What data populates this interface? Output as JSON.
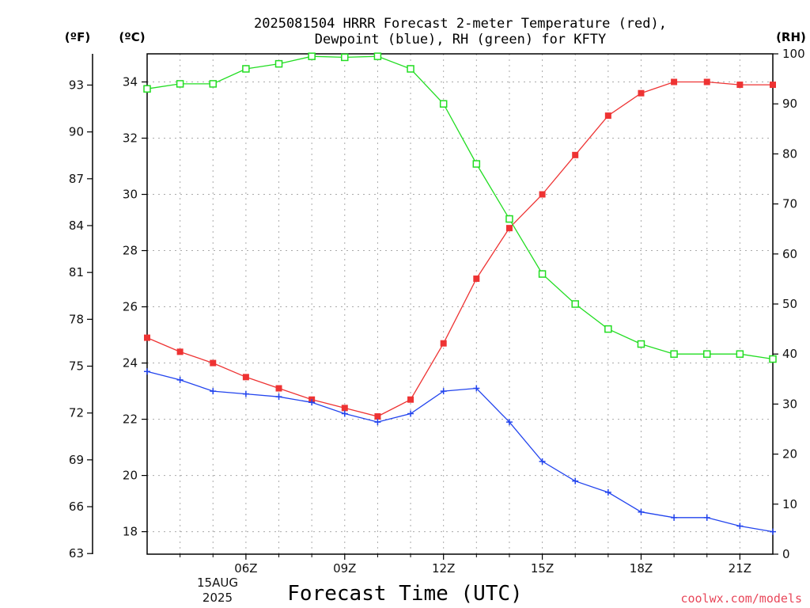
{
  "chart_data": {
    "type": "line",
    "title_lines": [
      "2025081504 HRRR Forecast 2-meter Temperature (red),",
      "Dewpoint (blue), RH (green) for KFTY"
    ],
    "xlabel": "Forecast Time (UTC)",
    "units": {
      "fahrenheit": "(ºF)",
      "celsius": "(ºC)",
      "rh": "(RH)"
    },
    "x_hours": [
      3,
      4,
      5,
      6,
      7,
      8,
      9,
      10,
      11,
      12,
      13,
      14,
      15,
      16,
      17,
      18,
      19,
      20,
      21,
      22
    ],
    "x_ticks": [
      {
        "hour": 6,
        "label": "06Z"
      },
      {
        "hour": 9,
        "label": "09Z"
      },
      {
        "hour": 12,
        "label": "12Z"
      },
      {
        "hour": 15,
        "label": "15Z"
      },
      {
        "hour": 18,
        "label": "18Z"
      },
      {
        "hour": 21,
        "label": "21Z"
      }
    ],
    "date_label": [
      "15AUG",
      "2025"
    ],
    "xlim": [
      3,
      22
    ],
    "ylim_celsius": [
      17.2,
      35.0
    ],
    "ylim_rh": [
      0,
      100
    ],
    "celsius_ticks": [
      "18",
      "20",
      "22",
      "24",
      "26",
      "28",
      "30",
      "32",
      "34"
    ],
    "fahrenheit_ticks": [
      "63",
      "66",
      "69",
      "72",
      "75",
      "78",
      "81",
      "84",
      "87",
      "90",
      "93"
    ],
    "rh_ticks": [
      "0",
      "10",
      "20",
      "30",
      "40",
      "50",
      "60",
      "70",
      "80",
      "90",
      "100"
    ],
    "grid": true,
    "series": [
      {
        "name": "Temperature",
        "axis": "celsius",
        "color": "#ee3333",
        "marker": "filled-square",
        "values": [
          24.9,
          24.4,
          24.0,
          23.5,
          23.1,
          22.7,
          22.4,
          22.1,
          22.7,
          24.7,
          27.0,
          28.8,
          30.0,
          31.4,
          32.8,
          33.6,
          34.0,
          34.0,
          33.9,
          33.9
        ]
      },
      {
        "name": "Dewpoint",
        "axis": "celsius",
        "color": "#2244ee",
        "marker": "plus",
        "values": [
          23.7,
          23.4,
          23.0,
          22.9,
          22.8,
          22.6,
          22.2,
          21.9,
          22.2,
          23.0,
          23.1,
          21.9,
          20.5,
          19.8,
          19.4,
          18.7,
          18.5,
          18.5,
          18.2,
          18.0
        ]
      },
      {
        "name": "RH",
        "axis": "rh",
        "color": "#22dd22",
        "marker": "open-square",
        "values": [
          93,
          94,
          94,
          97,
          98,
          99.5,
          99.3,
          99.5,
          97,
          90,
          78,
          67,
          56,
          50,
          45,
          42,
          40,
          40,
          40,
          39
        ]
      }
    ]
  },
  "credit": "coolwx.com/models"
}
